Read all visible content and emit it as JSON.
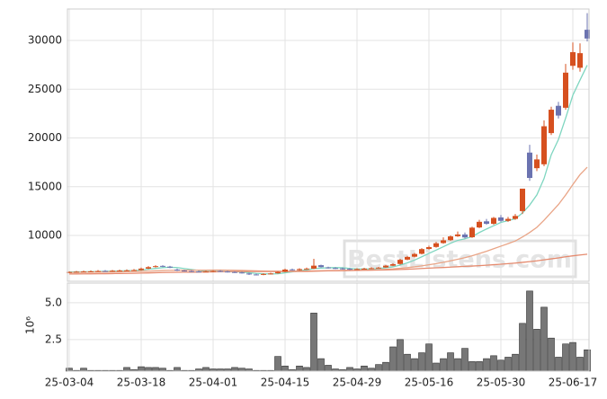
{
  "chart_data": [
    {
      "type": "candlestick",
      "watermark": "BestListens.com",
      "categories": [
        "25-03-04",
        null,
        null,
        null,
        null,
        null,
        null,
        null,
        null,
        null,
        "25-03-18",
        null,
        null,
        null,
        null,
        null,
        null,
        null,
        null,
        null,
        "25-04-01",
        null,
        null,
        null,
        null,
        null,
        null,
        null,
        null,
        null,
        "25-04-15",
        null,
        null,
        null,
        null,
        null,
        null,
        null,
        null,
        null,
        "25-04-29",
        null,
        null,
        null,
        null,
        null,
        null,
        null,
        null,
        null,
        "25-05-16",
        null,
        null,
        null,
        null,
        null,
        null,
        null,
        null,
        null,
        "25-05-30",
        null,
        null,
        null,
        null,
        null,
        null,
        null,
        null,
        null,
        "25-06-17",
        null,
        null
      ],
      "open": [
        6200,
        6250,
        6280,
        6300,
        6320,
        6360,
        6330,
        6380,
        6410,
        6420,
        6450,
        6600,
        6760,
        6880,
        6800,
        6500,
        6400,
        6350,
        6300,
        6270,
        6300,
        6360,
        6300,
        6250,
        6200,
        6100,
        6000,
        5980,
        6050,
        6120,
        6280,
        6520,
        6440,
        6560,
        6600,
        6950,
        6720,
        6660,
        6620,
        6580,
        6500,
        6560,
        6610,
        6660,
        6720,
        6900,
        7080,
        7520,
        7820,
        8120,
        8620,
        8820,
        9220,
        9520,
        9920,
        10100,
        9820,
        10820,
        11450,
        11200,
        11850,
        11500,
        11700,
        12500,
        18500,
        16900,
        17300,
        20500,
        23300,
        23100,
        27400,
        27200,
        31100
      ],
      "high": [
        6320,
        6360,
        6400,
        6420,
        6450,
        6450,
        6460,
        6500,
        6520,
        6560,
        6700,
        6850,
        6950,
        6950,
        6880,
        6600,
        6480,
        6440,
        6400,
        6380,
        6420,
        6440,
        6380,
        6330,
        6280,
        6180,
        6080,
        6120,
        6180,
        6320,
        6600,
        6600,
        6640,
        6700,
        7600,
        7000,
        6800,
        6740,
        6700,
        6660,
        6640,
        6680,
        6740,
        6780,
        6980,
        7150,
        7600,
        7900,
        8200,
        8700,
        8950,
        9350,
        9800,
        10000,
        10400,
        10300,
        10900,
        11600,
        11700,
        11900,
        12100,
        11900,
        12200,
        14800,
        19300,
        18300,
        21800,
        23200,
        23700,
        27600,
        29800,
        29700,
        32800
      ],
      "low": [
        6150,
        6200,
        6230,
        6250,
        6280,
        6280,
        6280,
        6330,
        6350,
        6380,
        6400,
        6550,
        6700,
        6750,
        6650,
        6350,
        6300,
        6250,
        6220,
        6220,
        6250,
        6250,
        6200,
        6150,
        6100,
        5950,
        5900,
        5920,
        6000,
        6080,
        6220,
        6400,
        6380,
        6500,
        6550,
        6700,
        6600,
        6550,
        6500,
        6450,
        6450,
        6500,
        6550,
        6600,
        6680,
        6850,
        7000,
        7450,
        7750,
        8050,
        8550,
        8750,
        9150,
        9450,
        9850,
        9700,
        9750,
        10750,
        11100,
        11100,
        11400,
        11400,
        11600,
        12200,
        15600,
        16600,
        17100,
        20300,
        22000,
        22900,
        27000,
        26800,
        29900
      ],
      "close": [
        6250,
        6280,
        6300,
        6320,
        6350,
        6330,
        6380,
        6400,
        6420,
        6450,
        6600,
        6750,
        6850,
        6800,
        6700,
        6400,
        6350,
        6300,
        6280,
        6300,
        6350,
        6300,
        6250,
        6200,
        6150,
        6000,
        5950,
        6050,
        6100,
        6250,
        6500,
        6450,
        6550,
        6600,
        6900,
        6750,
        6650,
        6600,
        6550,
        6500,
        6550,
        6600,
        6650,
        6700,
        6900,
        7050,
        7500,
        7800,
        8100,
        8600,
        8800,
        9200,
        9500,
        9900,
        10100,
        9800,
        10800,
        11400,
        11200,
        11800,
        11500,
        11700,
        12000,
        14800,
        15900,
        17800,
        21200,
        22900,
        22300,
        26700,
        28800,
        28700,
        30200
      ],
      "up_color": "#d6501f",
      "down_color": "#6b73b0",
      "series": [
        {
          "color": "#7fd6c0",
          "values": [
            6250,
            6260,
            6270,
            6290,
            6300,
            6320,
            6340,
            6360,
            6380,
            6400,
            6450,
            6530,
            6620,
            6700,
            6740,
            6700,
            6600,
            6510,
            6410,
            6330,
            6320,
            6310,
            6300,
            6280,
            6250,
            6180,
            6110,
            6070,
            6050,
            6070,
            6170,
            6270,
            6370,
            6470,
            6600,
            6650,
            6690,
            6700,
            6690,
            6610,
            6570,
            6560,
            6570,
            6610,
            6680,
            6780,
            6960,
            7190,
            7470,
            7810,
            8160,
            8500,
            8840,
            9200,
            9500,
            9660,
            9880,
            10300,
            10660,
            11000,
            11340,
            11520,
            11720,
            12300,
            13120,
            14160,
            15840,
            18280,
            19840,
            22040,
            24380,
            25940,
            27460
          ]
        },
        {
          "color": "#e9a486",
          "values": [
            6200,
            6210,
            6220,
            6230,
            6240,
            6250,
            6260,
            6270,
            6290,
            6300,
            6320,
            6340,
            6370,
            6400,
            6420,
            6430,
            6440,
            6440,
            6440,
            6440,
            6450,
            6450,
            6440,
            6430,
            6420,
            6390,
            6370,
            6350,
            6330,
            6320,
            6310,
            6300,
            6300,
            6310,
            6330,
            6350,
            6370,
            6380,
            6400,
            6410,
            6420,
            6440,
            6460,
            6480,
            6520,
            6570,
            6640,
            6700,
            6780,
            6880,
            6990,
            7110,
            7250,
            7400,
            7560,
            7720,
            7920,
            8150,
            8380,
            8640,
            8900,
            9160,
            9430,
            9840,
            10310,
            10830,
            11560,
            12370,
            13170,
            14150,
            15220,
            16240,
            17000
          ]
        },
        {
          "color": "#e58a6e",
          "values": [
            6050,
            6055,
            6060,
            6065,
            6070,
            6080,
            6090,
            6100,
            6110,
            6120,
            6140,
            6160,
            6180,
            6200,
            6210,
            6220,
            6230,
            6240,
            6250,
            6260,
            6270,
            6280,
            6290,
            6300,
            6300,
            6300,
            6300,
            6300,
            6300,
            6310,
            6320,
            6330,
            6340,
            6350,
            6360,
            6370,
            6380,
            6390,
            6400,
            6410,
            6420,
            6430,
            6440,
            6450,
            6470,
            6490,
            6510,
            6540,
            6570,
            6610,
            6650,
            6680,
            6710,
            6750,
            6790,
            6830,
            6860,
            6900,
            6950,
            7000,
            7050,
            7110,
            7170,
            7240,
            7320,
            7400,
            7500,
            7600,
            7700,
            7810,
            7910,
            8000,
            8080
          ]
        }
      ],
      "ylim": [
        5300,
        33230
      ],
      "yticks": [
        10000,
        15000,
        20000,
        25000,
        30000
      ],
      "grid": true
    },
    {
      "type": "bar",
      "y_label": "10⁶",
      "color": "#777777",
      "values": [
        0.55,
        0.4,
        0.55,
        0.4,
        0.4,
        0.4,
        0.4,
        0.4,
        0.6,
        0.45,
        0.65,
        0.6,
        0.6,
        0.55,
        0.4,
        0.6,
        0.4,
        0.4,
        0.5,
        0.6,
        0.5,
        0.5,
        0.5,
        0.6,
        0.55,
        0.5,
        0.4,
        0.4,
        0.4,
        1.35,
        0.7,
        0.45,
        0.7,
        0.6,
        4.3,
        1.2,
        0.75,
        0.5,
        0.45,
        0.6,
        0.5,
        0.7,
        0.55,
        0.8,
        0.95,
        2.0,
        2.5,
        1.5,
        1.2,
        1.6,
        2.2,
        0.9,
        1.2,
        1.6,
        1.2,
        1.9,
        1.0,
        1.0,
        1.2,
        1.4,
        1.1,
        1.3,
        1.5,
        3.6,
        5.8,
        3.2,
        4.7,
        2.6,
        1.3,
        2.2,
        2.3,
        1.3,
        1.8
      ],
      "ylim": [
        0.35,
        6.34
      ],
      "yticks": [
        2.5,
        {
          "value": 5,
          "label": "5.0"
        }
      ],
      "grid": true
    }
  ]
}
